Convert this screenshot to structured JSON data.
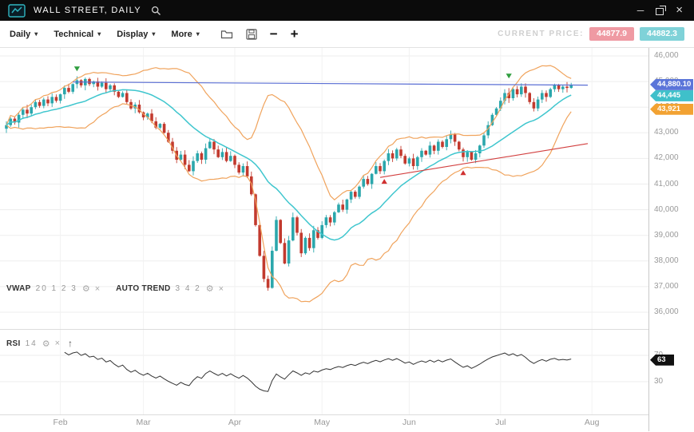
{
  "window": {
    "title": "WALL STREET, DAILY",
    "controls": {
      "minimize": "─",
      "close": "×"
    }
  },
  "icons": {
    "gear": "⚙",
    "remove": "×",
    "collapse": "↑",
    "caret": "▾"
  },
  "toolbar": {
    "menus": [
      {
        "label": "Daily"
      },
      {
        "label": "Technical"
      },
      {
        "label": "Display"
      },
      {
        "label": "More"
      }
    ],
    "zoom_out": "−",
    "zoom_in": "+",
    "current_price_label": "CURRENT PRICE:",
    "sell_price": "44877.9",
    "buy_price": "44882.3",
    "colors": {
      "sell_bg": "#ef9aa3",
      "buy_bg": "#7fd2d8"
    }
  },
  "indicators": {
    "vwap": {
      "name": "VWAP",
      "params": "20 1 2 3"
    },
    "auto_trend": {
      "name": "AUTO TREND",
      "params": "3 4 2"
    },
    "rsi": {
      "name": "RSI",
      "params": "14"
    }
  },
  "axis": {
    "y_labels": [
      {
        "text": "46,000",
        "value": 46000
      },
      {
        "text": "45,000",
        "value": 45000
      },
      {
        "text": "44,000",
        "value": 44000
      },
      {
        "text": "43,000",
        "value": 43000
      },
      {
        "text": "42,000",
        "value": 42000
      },
      {
        "text": "41,000",
        "value": 41000
      },
      {
        "text": "40,000",
        "value": 40000
      },
      {
        "text": "39,000",
        "value": 39000
      },
      {
        "text": "38,000",
        "value": 38000
      },
      {
        "text": "37,000",
        "value": 37000
      },
      {
        "text": "36,000",
        "value": 36000
      }
    ],
    "months": [
      {
        "label": "Feb",
        "index": 13
      },
      {
        "label": "Mar",
        "index": 33
      },
      {
        "label": "Apr",
        "index": 55
      },
      {
        "label": "May",
        "index": 76
      },
      {
        "label": "Jun",
        "index": 97
      },
      {
        "label": "Jul",
        "index": 119
      },
      {
        "label": "Aug",
        "index": 141
      }
    ],
    "price_tags": [
      {
        "text": "44,880.10",
        "value": 44880.1,
        "color": "#5b75d9"
      },
      {
        "text": "44,445",
        "value": 44445,
        "color": "#3fc0ca"
      },
      {
        "text": "43,921",
        "value": 43921,
        "color": "#f2a232"
      }
    ],
    "rsi_labels": [
      {
        "text": "70",
        "value": 70
      },
      {
        "text": "30",
        "value": 30
      }
    ],
    "rsi_tag": {
      "text": "63",
      "value": 63,
      "color": "#111111"
    }
  },
  "chart_data": {
    "type": "candlestick",
    "title": "WALL STREET, DAILY",
    "symbol": "WALL STREET",
    "timeframe": "DAILY",
    "ylim": [
      35700,
      46300
    ],
    "last_price": 44880.1,
    "x_months": [
      "Feb",
      "Mar",
      "Apr",
      "May",
      "Jun",
      "Jul",
      "Aug"
    ],
    "closes": [
      43300,
      43550,
      43400,
      43700,
      43900,
      43750,
      44000,
      44200,
      44050,
      44300,
      44150,
      44400,
      44250,
      44500,
      44750,
      44600,
      44900,
      45050,
      44850,
      45100,
      44900,
      45000,
      44800,
      44950,
      44700,
      44850,
      44600,
      44400,
      44550,
      44200,
      43950,
      44100,
      43800,
      43600,
      43750,
      43450,
      43200,
      43350,
      43000,
      42650,
      42300,
      41950,
      42150,
      41750,
      41500,
      41900,
      42200,
      41950,
      42400,
      42650,
      42350,
      42050,
      42250,
      41900,
      42100,
      41750,
      41450,
      41700,
      41300,
      40600,
      39400,
      38200,
      37300,
      36950,
      38400,
      39600,
      38700,
      37900,
      38800,
      39700,
      39100,
      38300,
      38900,
      38500,
      39200,
      38900,
      39400,
      39700,
      39500,
      39900,
      40200,
      40000,
      40400,
      40700,
      40500,
      40900,
      41200,
      41000,
      41400,
      41700,
      41500,
      41900,
      42200,
      42000,
      42350,
      42100,
      41800,
      42000,
      41700,
      42050,
      42300,
      42150,
      42500,
      42300,
      42650,
      42450,
      42750,
      42950,
      42650,
      42350,
      42050,
      42250,
      41950,
      42200,
      42500,
      42900,
      43300,
      43700,
      43950,
      44250,
      44550,
      44350,
      44700,
      44500,
      44800,
      44550,
      44200,
      43950,
      44300,
      44550,
      44400,
      44700,
      44850,
      44700,
      44800,
      44750,
      44880
    ],
    "colors": {
      "up": "#2ba7ac",
      "down": "#c23a2e",
      "bollinger": "#f0a35c",
      "vwap": "#3fc6ce",
      "rsi_line": "#333333"
    },
    "overlays": {
      "bollinger": {
        "period": 20,
        "stdev_mult": 2
      },
      "vwap": {
        "period": 20
      },
      "resistance_line": {
        "from_index": 16,
        "from_value": 44980,
        "to_index": 140,
        "to_value": 44860,
        "color": "#5b6fd4"
      },
      "trend_line": {
        "from_index": 90,
        "from_value": 41260,
        "to_index": 140,
        "to_value": 42580,
        "color": "#d23f3f"
      },
      "sell_color": "#2f9e3f",
      "buy_color": "#d03030",
      "sell_markers": [
        {
          "index": 17,
          "value": 45400
        },
        {
          "index": 121,
          "value": 45120
        }
      ],
      "buy_markers": [
        {
          "index": 91,
          "value": 41200
        },
        {
          "index": 110,
          "value": 41540
        }
      ]
    },
    "rsi": {
      "period": 14,
      "current": 63,
      "levels": [
        70,
        30
      ]
    }
  }
}
